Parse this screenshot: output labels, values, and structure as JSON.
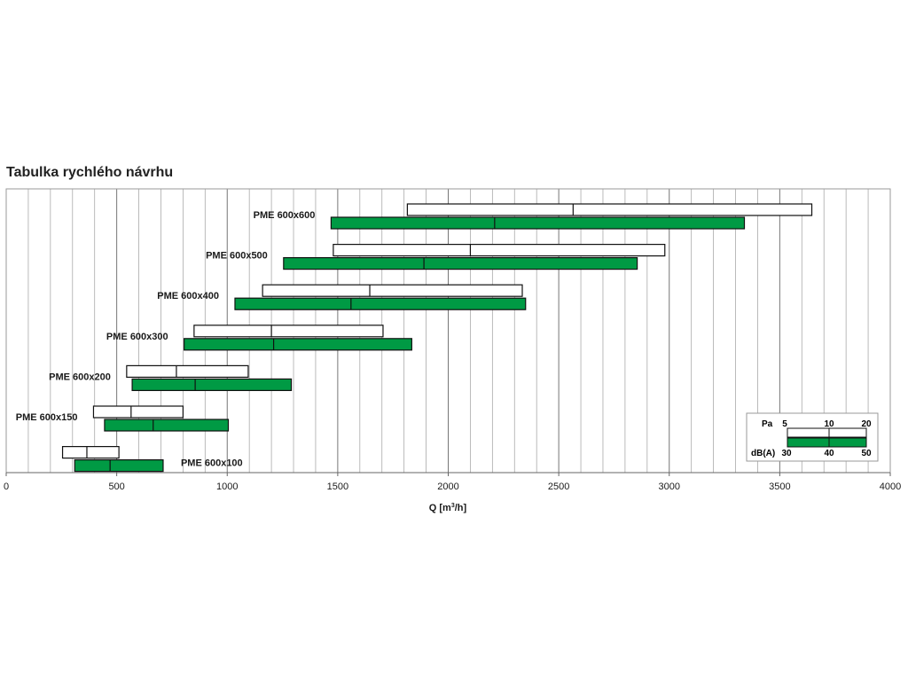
{
  "chart_data": {
    "type": "bar",
    "title": "Tabulka rychlého návrhu",
    "xlabel": "Q [m³/h]",
    "xlabel_main": "Q [m",
    "xlabel_sup": "3",
    "xlabel_tail": "/h]",
    "xlim": [
      0,
      4000
    ],
    "x_ticks": [
      "0",
      "500",
      "1000",
      "1500",
      "2000",
      "2500",
      "3000",
      "3500",
      "4000"
    ],
    "x_tick_values": [
      0,
      500,
      1000,
      1500,
      2000,
      2500,
      3000,
      3500,
      4000
    ],
    "grid": true,
    "legend_position": "bottom-right",
    "series": [
      {
        "label": "PME 600x600",
        "pa": [
          1815,
          2565,
          3645
        ],
        "db": [
          1470,
          2210,
          3340
        ]
      },
      {
        "label": "PME 600x500",
        "pa": [
          1480,
          2100,
          2980
        ],
        "db": [
          1255,
          1890,
          2855
        ]
      },
      {
        "label": "PME 600x400",
        "pa": [
          1160,
          1645,
          2335
        ],
        "db": [
          1035,
          1560,
          2350
        ]
      },
      {
        "label": "PME 600x300",
        "pa": [
          850,
          1200,
          1705
        ],
        "db": [
          805,
          1210,
          1835
        ]
      },
      {
        "label": "PME 600x200",
        "pa": [
          545,
          770,
          1095
        ],
        "db": [
          570,
          855,
          1290
        ]
      },
      {
        "label": "PME 600x150",
        "pa": [
          395,
          565,
          800
        ],
        "db": [
          445,
          665,
          1005
        ]
      },
      {
        "label": "PME 600x100",
        "pa": [
          255,
          365,
          510
        ],
        "db": [
          310,
          470,
          710
        ]
      }
    ],
    "legend": {
      "pa_label": "Pa",
      "pa_values": [
        "5",
        "10",
        "20"
      ],
      "db_label": "dB(A)",
      "db_values": [
        "30",
        "40",
        "50"
      ]
    }
  },
  "colors": {
    "green": "#009a44",
    "grid": "#aaaaaa",
    "grid_major": "#777777",
    "border": "#111111"
  }
}
